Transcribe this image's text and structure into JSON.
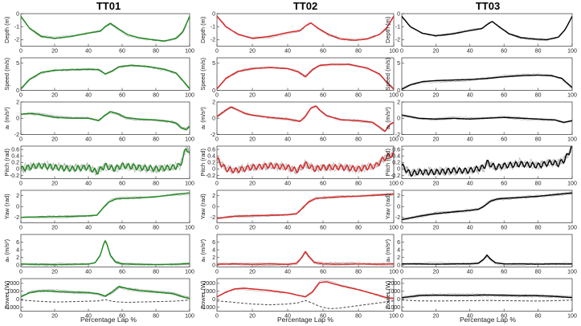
{
  "figure": {
    "columns": [
      "TT01",
      "TT02",
      "TT03"
    ],
    "xlabel": "Percentage Lap %",
    "colors": {
      "TT01": "#1a8a1a",
      "TT02": "#e02020",
      "TT03": "#000000",
      "repeats": "#9a9a9a"
    }
  },
  "chart_data": [
    {
      "type": "line",
      "panels": [
        "depth",
        "speed",
        "at",
        "pitch",
        "yaw",
        "an",
        "power"
      ],
      "x_range": [
        0,
        100
      ],
      "x_ticks": [
        "0",
        "20",
        "40",
        "60",
        "80",
        "100"
      ],
      "rows": [
        {
          "id": "depth",
          "ylabel": "Depth (m)",
          "ylim": [
            -2.5,
            0
          ],
          "yticks": [
            "0",
            "-1",
            "-2"
          ]
        },
        {
          "id": "speed",
          "ylabel": "Speed (m/s)",
          "ylim": [
            0,
            6
          ],
          "yticks": [
            "0",
            "5"
          ]
        },
        {
          "id": "at",
          "ylabel": "aₜ (m/s²)",
          "ylim": [
            -2,
            2
          ],
          "yticks": [
            "2",
            "0",
            "-2"
          ]
        },
        {
          "id": "pitch",
          "ylabel": "Pitch (rad)",
          "ylim": [
            -0.3,
            0.7
          ],
          "yticks": [
            "0.6",
            "0.4",
            "0.2",
            "0",
            "-0.2"
          ]
        },
        {
          "id": "yaw",
          "ylabel": "Yaw (rad)",
          "ylim": [
            -3,
            3
          ],
          "yticks": [
            "2",
            "0",
            "-2"
          ]
        },
        {
          "id": "an",
          "ylabel": "aₙ (m/s²)",
          "ylim": [
            -0.5,
            8
          ],
          "yticks": [
            "6",
            "4",
            "2",
            "0"
          ]
        },
        {
          "id": "power",
          "ylabel": "Power (W)",
          "ylim": [
            -1500,
            2600
          ],
          "yticks": [
            "2000",
            "1000",
            "0",
            "-1000"
          ]
        }
      ],
      "series": {
        "TT01": {
          "depth": {
            "x": [
              0,
              5,
              12,
              20,
              30,
              40,
              47,
              50,
              53,
              57,
              63,
              70,
              78,
              85,
              92,
              96,
              100
            ],
            "y": [
              -0.2,
              -1.1,
              -1.75,
              -1.9,
              -1.75,
              -1.5,
              -1.35,
              -1.0,
              -0.75,
              -1.1,
              -1.6,
              -1.85,
              -2.0,
              -2.1,
              -1.9,
              -1.4,
              -0.2
            ]
          },
          "speed": {
            "x": [
              0,
              5,
              12,
              20,
              30,
              40,
              46,
              50,
              54,
              58,
              65,
              75,
              85,
              92,
              96,
              100
            ],
            "y": [
              0.3,
              2.0,
              3.3,
              3.7,
              3.8,
              3.85,
              3.8,
              3.0,
              3.5,
              4.3,
              4.6,
              4.4,
              3.9,
              3.2,
              1.8,
              0.3
            ]
          },
          "at": {
            "x": [
              0,
              5,
              10,
              15,
              20,
              30,
              40,
              46,
              50,
              53,
              57,
              62,
              70,
              80,
              88,
              92,
              95,
              98,
              100
            ],
            "y": [
              0.5,
              0.6,
              0.5,
              0.3,
              0.1,
              0.0,
              0.0,
              -0.3,
              0.4,
              0.8,
              0.6,
              0.1,
              -0.1,
              -0.2,
              -0.4,
              -0.6,
              -1.2,
              -1.4,
              -1.0
            ]
          },
          "pitch": {
            "x": [
              0,
              10,
              20,
              30,
              40,
              45,
              50,
              55,
              60,
              70,
              80,
              90,
              94,
              96,
              98,
              100
            ],
            "y": [
              0.0,
              0.1,
              0.05,
              0.0,
              0.05,
              -0.1,
              0.1,
              0.0,
              0.1,
              0.05,
              0.0,
              0.05,
              0.1,
              0.3,
              0.7,
              0.4
            ]
          },
          "yaw": {
            "x": [
              0,
              10,
              20,
              30,
              40,
              45,
              48,
              52,
              56,
              60,
              70,
              80,
              90,
              100
            ],
            "y": [
              -2.0,
              -1.9,
              -1.85,
              -1.8,
              -1.7,
              -1.6,
              -0.5,
              0.8,
              1.4,
              1.5,
              1.6,
              1.8,
              2.2,
              2.5
            ]
          },
          "an": {
            "x": [
              0,
              10,
              20,
              30,
              40,
              44,
              47,
              49,
              50,
              51,
              53,
              56,
              60,
              70,
              80,
              90,
              100
            ],
            "y": [
              0.3,
              0.2,
              0.15,
              0.2,
              0.25,
              0.6,
              2.5,
              5.5,
              6.3,
              5.5,
              2.5,
              0.8,
              0.3,
              0.2,
              0.15,
              0.2,
              0.4
            ]
          },
          "power": {
            "x": [
              0,
              5,
              10,
              15,
              20,
              30,
              40,
              46,
              50,
              54,
              58,
              64,
              70,
              80,
              90,
              96,
              100
            ],
            "y": [
              300,
              800,
              1000,
              1050,
              1000,
              900,
              850,
              700,
              400,
              900,
              1600,
              1300,
              1100,
              900,
              700,
              300,
              100
            ]
          },
          "power2": {
            "x": [
              0,
              10,
              20,
              30,
              40,
              46,
              50,
              54,
              58,
              64,
              70,
              80,
              90,
              100
            ],
            "y": [
              -100,
              -250,
              -350,
              -300,
              -250,
              -200,
              -50,
              -250,
              -350,
              -400,
              -350,
              -300,
              -250,
              -100
            ]
          }
        },
        "TT02": {
          "depth": {
            "x": [
              0,
              5,
              12,
              20,
              30,
              40,
              47,
              50,
              53,
              57,
              63,
              70,
              78,
              85,
              92,
              96,
              100
            ],
            "y": [
              -0.2,
              -1.0,
              -1.6,
              -1.9,
              -1.75,
              -1.45,
              -1.3,
              -0.95,
              -0.7,
              -1.1,
              -1.6,
              -1.95,
              -2.05,
              -1.95,
              -1.6,
              -1.1,
              -0.2
            ]
          },
          "speed": {
            "x": [
              0,
              5,
              12,
              20,
              30,
              40,
              46,
              50,
              54,
              58,
              65,
              75,
              85,
              92,
              96,
              100
            ],
            "y": [
              0.3,
              2.2,
              3.5,
              4.0,
              4.2,
              4.0,
              3.4,
              2.5,
              3.8,
              4.6,
              4.8,
              4.8,
              4.1,
              3.0,
              1.5,
              0.2
            ]
          },
          "at": {
            "x": [
              0,
              5,
              8,
              12,
              16,
              20,
              30,
              40,
              47,
              50,
              53,
              56,
              58,
              62,
              70,
              80,
              88,
              92,
              95,
              98,
              100
            ],
            "y": [
              0.2,
              1.0,
              1.4,
              1.0,
              0.6,
              0.4,
              0.1,
              -0.1,
              -0.4,
              0.2,
              1.2,
              1.5,
              1.0,
              0.3,
              -0.2,
              -0.3,
              -0.5,
              -1.1,
              -1.6,
              -0.7,
              -0.5
            ]
          },
          "pitch": {
            "x": [
              0,
              5,
              10,
              15,
              20,
              30,
              40,
              45,
              50,
              55,
              60,
              70,
              80,
              90,
              94,
              97,
              100
            ],
            "y": [
              0.3,
              0.0,
              -0.05,
              0.0,
              0.05,
              0.1,
              0.05,
              -0.05,
              0.15,
              0.0,
              0.05,
              0.05,
              0.0,
              0.1,
              0.3,
              0.4,
              0.45
            ]
          },
          "yaw": {
            "x": [
              0,
              10,
              20,
              30,
              40,
              45,
              48,
              52,
              56,
              60,
              70,
              80,
              90,
              100
            ],
            "y": [
              -2.2,
              -1.8,
              -1.7,
              -1.6,
              -1.5,
              -1.3,
              -0.4,
              0.9,
              1.5,
              1.6,
              1.8,
              1.9,
              2.1,
              2.3
            ]
          },
          "an": {
            "x": [
              0,
              10,
              20,
              30,
              40,
              45,
              48,
              50,
              52,
              55,
              60,
              70,
              80,
              90,
              100
            ],
            "y": [
              0.2,
              0.3,
              0.2,
              0.3,
              0.2,
              0.5,
              2.0,
              3.5,
              2.2,
              0.7,
              0.3,
              0.2,
              0.3,
              0.2,
              0.3
            ]
          },
          "power": {
            "x": [
              0,
              5,
              10,
              15,
              20,
              30,
              40,
              46,
              50,
              54,
              58,
              62,
              70,
              80,
              90,
              96,
              100
            ],
            "y": [
              300,
              900,
              1300,
              1400,
              1300,
              1100,
              800,
              500,
              300,
              900,
              2100,
              2200,
              1700,
              1200,
              600,
              200,
              100
            ]
          },
          "power2": {
            "x": [
              0,
              10,
              20,
              30,
              40,
              46,
              50,
              54,
              58,
              64,
              70,
              80,
              90,
              100
            ],
            "y": [
              -200,
              -400,
              -600,
              -700,
              -600,
              -450,
              -150,
              -500,
              -900,
              -1200,
              -1100,
              -800,
              -500,
              -200
            ]
          }
        },
        "TT03": {
          "depth": {
            "x": [
              0,
              5,
              12,
              20,
              30,
              40,
              47,
              50,
              53,
              57,
              63,
              70,
              78,
              85,
              92,
              96,
              100
            ],
            "y": [
              -0.2,
              -1.0,
              -1.5,
              -1.7,
              -1.55,
              -1.3,
              -1.15,
              -0.85,
              -0.6,
              -1.0,
              -1.55,
              -1.85,
              -1.95,
              -2.0,
              -1.8,
              -1.2,
              -0.2
            ]
          },
          "speed": {
            "x": [
              0,
              5,
              12,
              20,
              30,
              40,
              50,
              60,
              70,
              80,
              88,
              94,
              100
            ],
            "y": [
              0.2,
              1.0,
              1.6,
              1.8,
              1.9,
              2.0,
              2.2,
              2.5,
              2.7,
              2.8,
              2.7,
              2.2,
              0.5
            ]
          },
          "at": {
            "x": [
              0,
              5,
              10,
              20,
              30,
              40,
              50,
              60,
              70,
              80,
              90,
              95,
              100
            ],
            "y": [
              0.4,
              0.2,
              0.0,
              -0.1,
              0.0,
              -0.1,
              0.0,
              0.1,
              0.0,
              -0.1,
              -0.2,
              -0.5,
              -0.3
            ]
          },
          "pitch": {
            "x": [
              0,
              5,
              10,
              20,
              30,
              40,
              48,
              50,
              55,
              60,
              70,
              80,
              88,
              92,
              96,
              100
            ],
            "y": [
              0.1,
              -0.15,
              -0.1,
              -0.1,
              -0.05,
              -0.05,
              0.05,
              0.2,
              0.05,
              0.1,
              0.15,
              0.1,
              0.2,
              0.15,
              0.3,
              0.7
            ]
          },
          "yaw": {
            "x": [
              0,
              10,
              20,
              30,
              40,
              45,
              48,
              52,
              56,
              60,
              70,
              80,
              90,
              100
            ],
            "y": [
              -2.4,
              -1.8,
              -1.3,
              -1.0,
              -0.7,
              -0.5,
              0.0,
              1.0,
              1.4,
              1.5,
              1.7,
              1.9,
              2.2,
              2.5
            ]
          },
          "an": {
            "x": [
              0,
              10,
              20,
              30,
              40,
              45,
              48,
              50,
              52,
              55,
              60,
              70,
              80,
              90,
              100
            ],
            "y": [
              0.3,
              0.3,
              0.25,
              0.3,
              0.35,
              0.5,
              1.5,
              2.6,
              1.6,
              0.6,
              0.3,
              0.3,
              0.25,
              0.3,
              0.3
            ]
          },
          "power": {
            "x": [
              0,
              10,
              20,
              30,
              40,
              50,
              60,
              70,
              80,
              90,
              100
            ],
            "y": [
              200,
              450,
              500,
              480,
              500,
              550,
              520,
              480,
              450,
              350,
              200
            ]
          },
          "power2": {
            "x": [
              0,
              10,
              20,
              30,
              40,
              50,
              60,
              70,
              80,
              90,
              100
            ],
            "y": [
              -100,
              -200,
              -220,
              -200,
              -180,
              -150,
              -180,
              -200,
              -220,
              -180,
              -100
            ]
          }
        }
      }
    }
  ]
}
